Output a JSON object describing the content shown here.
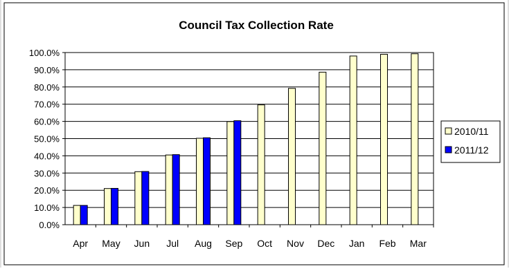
{
  "chart_data": {
    "type": "bar",
    "title": "Council Tax Collection Rate",
    "xlabel": "",
    "ylabel": "",
    "ylim": [
      0,
      100
    ],
    "y_tick_step": 10,
    "y_tick_format": "percent_1dp",
    "grid": true,
    "legend_position": "right",
    "categories": [
      "Apr",
      "May",
      "Jun",
      "Jul",
      "Aug",
      "Sep",
      "Oct",
      "Nov",
      "Dec",
      "Jan",
      "Feb",
      "Mar"
    ],
    "series": [
      {
        "name": "2010/11",
        "color": "#FFFFCC",
        "values": [
          11.2,
          21.0,
          30.8,
          40.5,
          50.2,
          59.9,
          69.6,
          79.2,
          88.6,
          98.0,
          99.0,
          99.3
        ]
      },
      {
        "name": "2011/12",
        "color": "#0000FF",
        "values": [
          11.2,
          21.1,
          30.9,
          40.7,
          50.5,
          60.4,
          null,
          null,
          null,
          null,
          null,
          null
        ]
      }
    ]
  }
}
